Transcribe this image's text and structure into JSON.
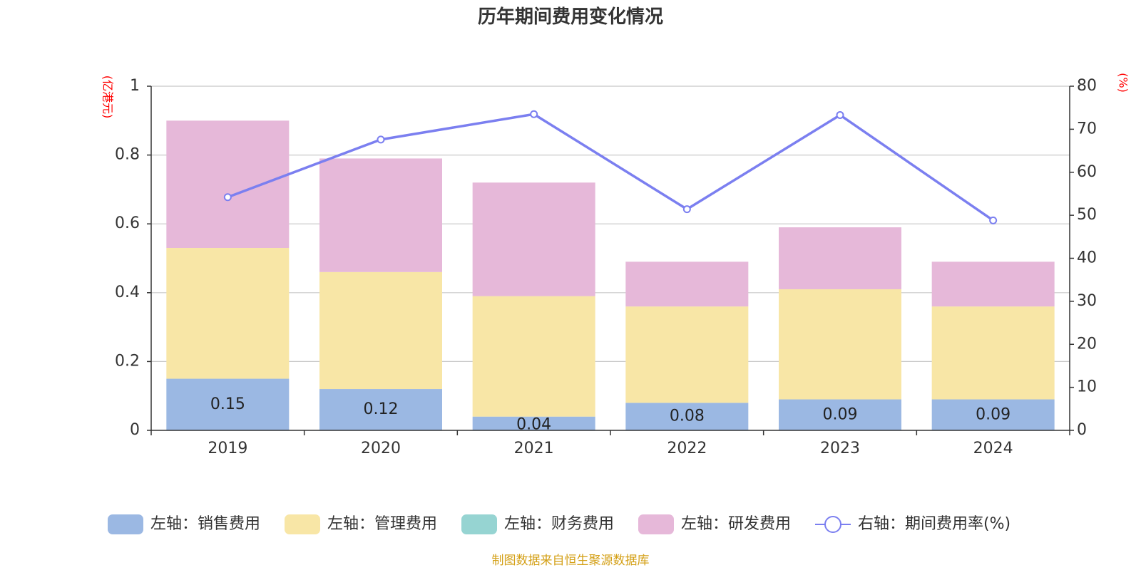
{
  "colors": {
    "sales": "#9bb8e3",
    "admin": "#f8e6a6",
    "finance": "#96d4d2",
    "rnd": "#e6b8d9",
    "rate_line": "#7b7ff0",
    "grid": "#c8c8c8",
    "axis": "#333333",
    "unit": "#ff0000",
    "source": "#d4a017"
  },
  "chart_data": {
    "type": "bar",
    "stacked": true,
    "title": "历年期间费用变化情况",
    "left_unit": "(亿港元)",
    "right_unit": "(%)",
    "categories": [
      "2019",
      "2020",
      "2021",
      "2022",
      "2023",
      "2024"
    ],
    "ylim_left": [
      0,
      1
    ],
    "left_ticks": [
      "0",
      "0.2",
      "0.4",
      "0.6",
      "0.8",
      "1"
    ],
    "ylim_right": [
      0,
      80
    ],
    "right_ticks": [
      "0",
      "10",
      "20",
      "30",
      "40",
      "50",
      "60",
      "70",
      "80"
    ],
    "grid": true,
    "legend_position": "bottom",
    "series": [
      {
        "name": "左轴：销售费用",
        "key": "sales",
        "type": "bar",
        "values": [
          0.15,
          0.12,
          0.04,
          0.08,
          0.09,
          0.09
        ],
        "labels": [
          "0.15",
          "0.12",
          "0.04",
          "0.08",
          "0.09",
          "0.09"
        ]
      },
      {
        "name": "左轴：管理费用",
        "key": "admin",
        "type": "bar",
        "values": [
          0.38,
          0.34,
          0.35,
          0.28,
          0.32,
          0.27
        ]
      },
      {
        "name": "左轴：财务费用",
        "key": "finance",
        "type": "bar",
        "values": [
          0,
          0,
          0,
          0,
          0,
          0
        ]
      },
      {
        "name": "左轴：研发费用",
        "key": "rnd",
        "type": "bar",
        "values": [
          0.37,
          0.33,
          0.33,
          0.13,
          0.18,
          0.13
        ]
      },
      {
        "name": "右轴：期间费用率(%)",
        "key": "rate_line",
        "type": "line",
        "axis": "right",
        "values": [
          54.2,
          67.6,
          73.5,
          51.4,
          73.3,
          48.8
        ]
      }
    ]
  },
  "source_note": "制图数据来自恒生聚源数据库"
}
